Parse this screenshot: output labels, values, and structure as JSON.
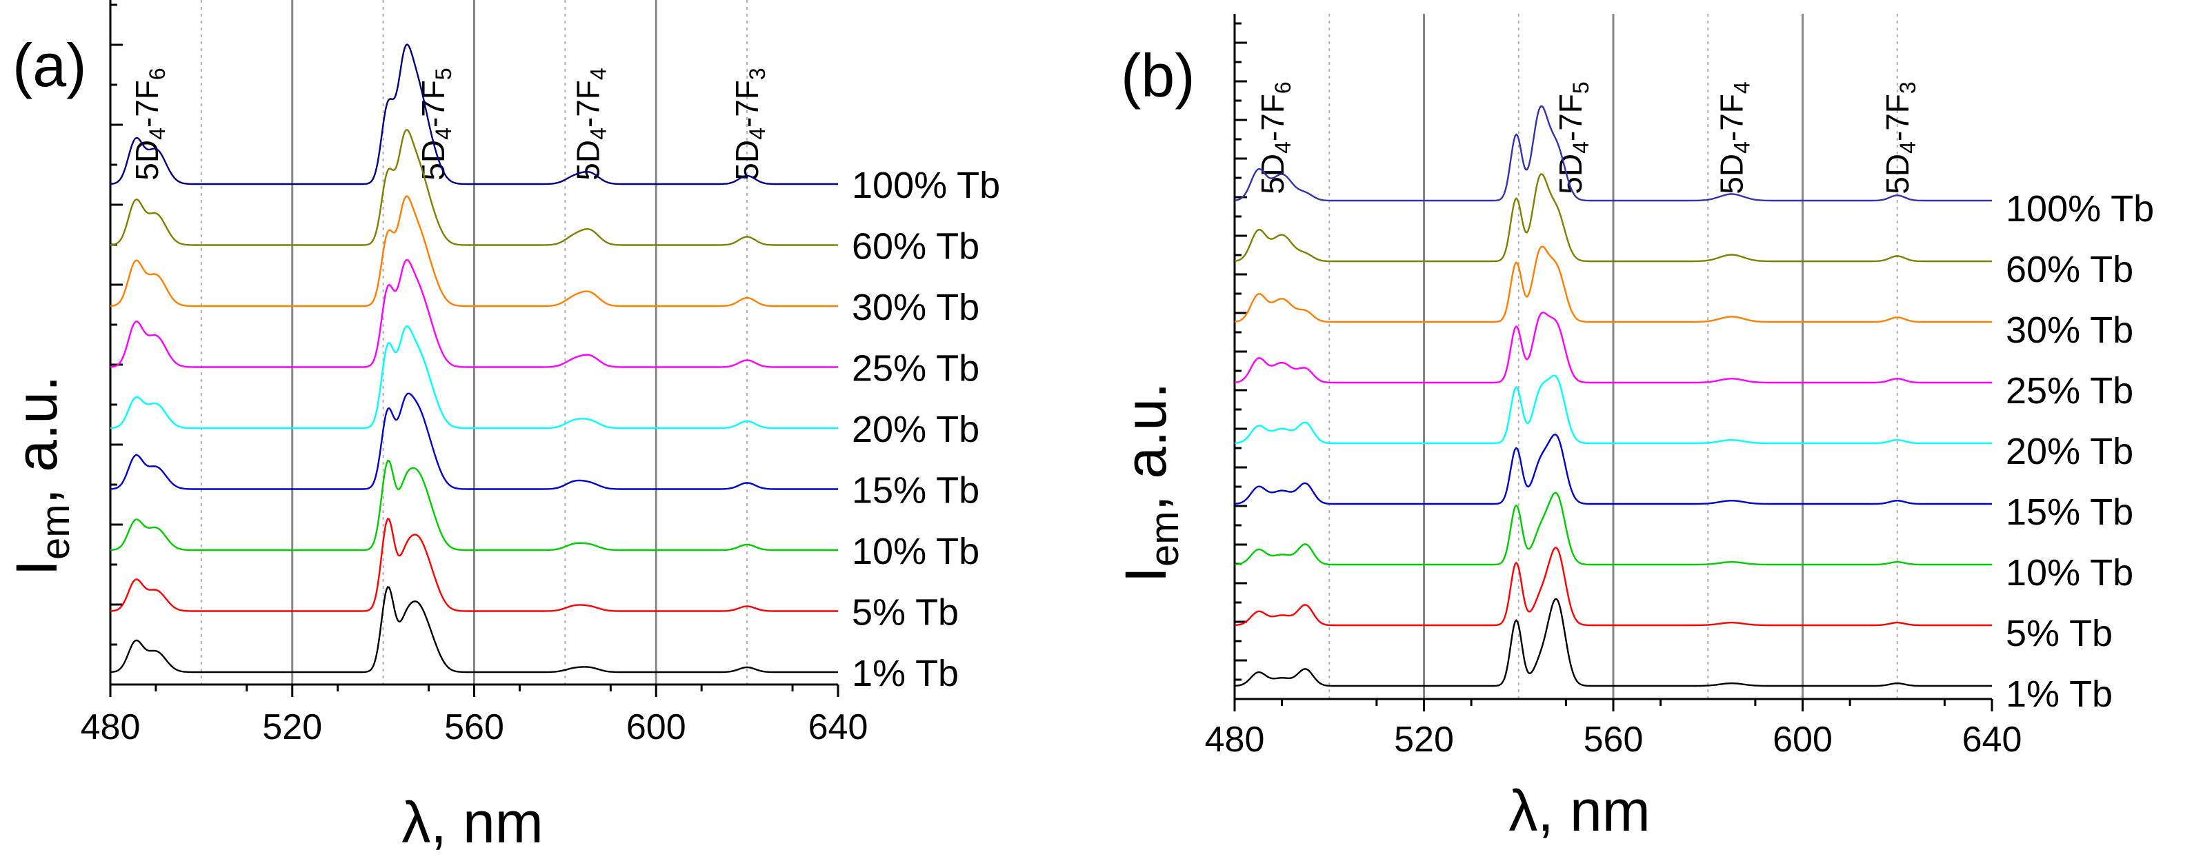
{
  "chart_data": [
    {
      "type": "line",
      "panel_label": "(a)",
      "xlabel": "λ, nm",
      "ylabel": "I",
      "ylabel_sub": "em",
      "ylabel_suffix": ", a.u.",
      "xlim": [
        480,
        640
      ],
      "xticks": [
        "480",
        "520",
        "560",
        "600",
        "640"
      ],
      "grid_lines": [
        520,
        560,
        600
      ],
      "dotted_lines": [
        500,
        540,
        580,
        620
      ],
      "transitions": [
        {
          "x": 488,
          "label": "5D",
          "sub1": "4",
          "mid": "-7F",
          "sub2": "6"
        },
        {
          "x": 551,
          "label": "5D",
          "sub1": "4",
          "mid": "-7F",
          "sub2": "5"
        },
        {
          "x": 585,
          "label": "5D",
          "sub1": "4",
          "mid": "-7F",
          "sub2": "4"
        },
        {
          "x": 620,
          "label": "5D",
          "sub1": "4",
          "mid": "-7F",
          "sub2": "3"
        }
      ],
      "peaks": [
        {
          "c": 485.5,
          "w": 1.6
        },
        {
          "c": 490,
          "w": 2.2
        },
        {
          "c": 541,
          "w": 1.4
        },
        {
          "c": 544.5,
          "w": 1.5
        },
        {
          "c": 547,
          "w": 2
        },
        {
          "c": 550,
          "w": 2.2
        },
        {
          "c": 582,
          "w": 2
        },
        {
          "c": 585.5,
          "w": 2
        },
        {
          "c": 620,
          "w": 1.8
        }
      ],
      "series": [
        {
          "name": "1% Tb",
          "color": "#000000",
          "offset": 0,
          "amps": [
            0.42,
            0.3,
            1.2,
            0.4,
            0.75,
            0.45,
            0.05,
            0.06,
            0.07
          ]
        },
        {
          "name": "5% Tb",
          "color": "#ff0000",
          "offset": 1,
          "amps": [
            0.42,
            0.3,
            1.3,
            0.45,
            0.8,
            0.5,
            0.07,
            0.06,
            0.07
          ]
        },
        {
          "name": "10% Tb",
          "color": "#00cc00",
          "offset": 2,
          "amps": [
            0.4,
            0.32,
            1.25,
            0.55,
            0.85,
            0.5,
            0.08,
            0.07,
            0.08
          ]
        },
        {
          "name": "15% Tb",
          "color": "#0000cc",
          "offset": 3,
          "amps": [
            0.45,
            0.32,
            1.1,
            0.8,
            0.9,
            0.5,
            0.1,
            0.08,
            0.09
          ]
        },
        {
          "name": "20% Tb",
          "color": "#00ffff",
          "offset": 4,
          "amps": [
            0.4,
            0.35,
            1.15,
            0.95,
            0.85,
            0.5,
            0.1,
            0.1,
            0.1
          ]
        },
        {
          "name": "25% Tb",
          "color": "#ff00ff",
          "offset": 5,
          "amps": [
            0.6,
            0.45,
            1.1,
            1.0,
            0.9,
            0.5,
            0.1,
            0.15,
            0.1
          ]
        },
        {
          "name": "30% Tb",
          "color": "#ff7f00",
          "offset": 6,
          "amps": [
            0.6,
            0.45,
            1.0,
            1.05,
            0.9,
            0.45,
            0.12,
            0.18,
            0.12
          ]
        },
        {
          "name": "60% Tb",
          "color": "#808000",
          "offset": 7,
          "amps": [
            0.6,
            0.45,
            1.0,
            1.1,
            0.95,
            0.45,
            0.12,
            0.2,
            0.12
          ]
        },
        {
          "name": "100% Tb",
          "color": "#000080",
          "offset": 8,
          "amps": [
            0.6,
            0.5,
            1.1,
            1.3,
            1.2,
            0.5,
            0.1,
            0.15,
            0.12
          ]
        }
      ]
    },
    {
      "type": "line",
      "panel_label": "(b)",
      "xlabel": "λ, nm",
      "ylabel": "I",
      "ylabel_sub": "em",
      "ylabel_suffix": ", a.u.",
      "xlim": [
        480,
        640
      ],
      "xticks": [
        "480",
        "520",
        "560",
        "600",
        "640"
      ],
      "grid_lines": [
        520,
        560,
        600
      ],
      "dotted_lines": [
        500,
        540,
        580,
        620
      ],
      "transitions": [
        {
          "x": 488,
          "label": "5D",
          "sub1": "4",
          "mid": "-7F",
          "sub2": "6"
        },
        {
          "x": 551,
          "label": "5D",
          "sub1": "4",
          "mid": "-7F",
          "sub2": "5"
        },
        {
          "x": 585,
          "label": "5D",
          "sub1": "4",
          "mid": "-7F",
          "sub2": "4"
        },
        {
          "x": 620,
          "label": "5D",
          "sub1": "4",
          "mid": "-7F",
          "sub2": "3"
        }
      ],
      "peaks": [
        {
          "c": 485,
          "w": 1.6
        },
        {
          "c": 490,
          "w": 2.2
        },
        {
          "c": 495,
          "w": 1.6
        },
        {
          "c": 539.5,
          "w": 1.2
        },
        {
          "c": 544.5,
          "w": 1.6
        },
        {
          "c": 548,
          "w": 1.8
        },
        {
          "c": 585,
          "w": 2.5
        },
        {
          "c": 620,
          "w": 1.6
        }
      ],
      "series": [
        {
          "name": "1% Tb",
          "color": "#000000",
          "offset": 0,
          "amps": [
            0.2,
            0.12,
            0.25,
            1.0,
            0.3,
            1.3,
            0.04,
            0.04
          ]
        },
        {
          "name": "5% Tb",
          "color": "#ff0000",
          "offset": 1,
          "amps": [
            0.2,
            0.15,
            0.3,
            0.95,
            0.35,
            1.15,
            0.04,
            0.04
          ]
        },
        {
          "name": "10% Tb",
          "color": "#00cc00",
          "offset": 2,
          "amps": [
            0.22,
            0.15,
            0.3,
            0.9,
            0.45,
            1.05,
            0.04,
            0.04
          ]
        },
        {
          "name": "15% Tb",
          "color": "#0000cc",
          "offset": 3,
          "amps": [
            0.25,
            0.2,
            0.3,
            0.85,
            0.55,
            1.0,
            0.05,
            0.05
          ]
        },
        {
          "name": "20% Tb",
          "color": "#00ffff",
          "offset": 4,
          "amps": [
            0.25,
            0.22,
            0.3,
            0.85,
            0.7,
            0.95,
            0.05,
            0.05
          ]
        },
        {
          "name": "25% Tb",
          "color": "#ff00ff",
          "offset": 5,
          "amps": [
            0.35,
            0.3,
            0.2,
            0.85,
            0.9,
            0.85,
            0.06,
            0.06
          ]
        },
        {
          "name": "30% Tb",
          "color": "#ff7f00",
          "offset": 6,
          "amps": [
            0.4,
            0.35,
            0.15,
            0.9,
            1.0,
            0.8,
            0.08,
            0.07
          ]
        },
        {
          "name": "60% Tb",
          "color": "#808000",
          "offset": 7,
          "amps": [
            0.45,
            0.4,
            0.1,
            0.95,
            1.2,
            0.75,
            0.1,
            0.08
          ]
        },
        {
          "name": "100% Tb",
          "color": "#3333aa",
          "offset": 8,
          "amps": [
            0.45,
            0.4,
            0.1,
            1.0,
            1.3,
            0.8,
            0.1,
            0.08
          ]
        }
      ]
    }
  ]
}
